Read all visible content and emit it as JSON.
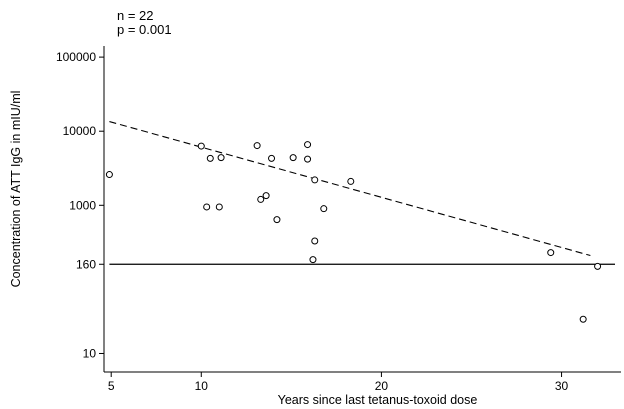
{
  "chart_data": {
    "type": "scatter",
    "annotations": [
      "n = 22",
      "p = 0.001"
    ],
    "xlabel": "Years since last tetanus-toxoid dose",
    "ylabel": "Concentration of ATT IgG in mIU/ml",
    "xlim": [
      4.6,
      33.3
    ],
    "ylim_log10": [
      0.75,
      5.15
    ],
    "y_scale": "log",
    "x_ticks": [
      5,
      10,
      20,
      30
    ],
    "x_tick_labels": [
      "5",
      "10",
      "20",
      "30"
    ],
    "y_ticks": [
      10,
      160,
      1000,
      10000,
      100000
    ],
    "y_tick_labels": [
      "10",
      "160",
      "1000",
      "10000",
      "100000"
    ],
    "grid": false,
    "points": [
      {
        "x": 4.9,
        "y": 2600
      },
      {
        "x": 10.0,
        "y": 6300
      },
      {
        "x": 10.3,
        "y": 950
      },
      {
        "x": 10.5,
        "y": 4300
      },
      {
        "x": 11.0,
        "y": 950
      },
      {
        "x": 11.1,
        "y": 4400
      },
      {
        "x": 13.1,
        "y": 6400
      },
      {
        "x": 13.3,
        "y": 1200
      },
      {
        "x": 13.6,
        "y": 1350
      },
      {
        "x": 13.9,
        "y": 4300
      },
      {
        "x": 14.2,
        "y": 640
      },
      {
        "x": 15.1,
        "y": 4400
      },
      {
        "x": 15.9,
        "y": 4200
      },
      {
        "x": 15.9,
        "y": 6600
      },
      {
        "x": 16.2,
        "y": 185
      },
      {
        "x": 16.3,
        "y": 2200
      },
      {
        "x": 16.3,
        "y": 330
      },
      {
        "x": 16.8,
        "y": 900
      },
      {
        "x": 18.3,
        "y": 2100
      },
      {
        "x": 29.4,
        "y": 230
      },
      {
        "x": 31.2,
        "y": 29
      },
      {
        "x": 32.0,
        "y": 150
      }
    ],
    "reference_line": {
      "y": 160,
      "style": "solid"
    },
    "fit_line": {
      "style": "dashed",
      "x": [
        4.9,
        31.6
      ],
      "y": [
        13500,
        210
      ]
    }
  }
}
